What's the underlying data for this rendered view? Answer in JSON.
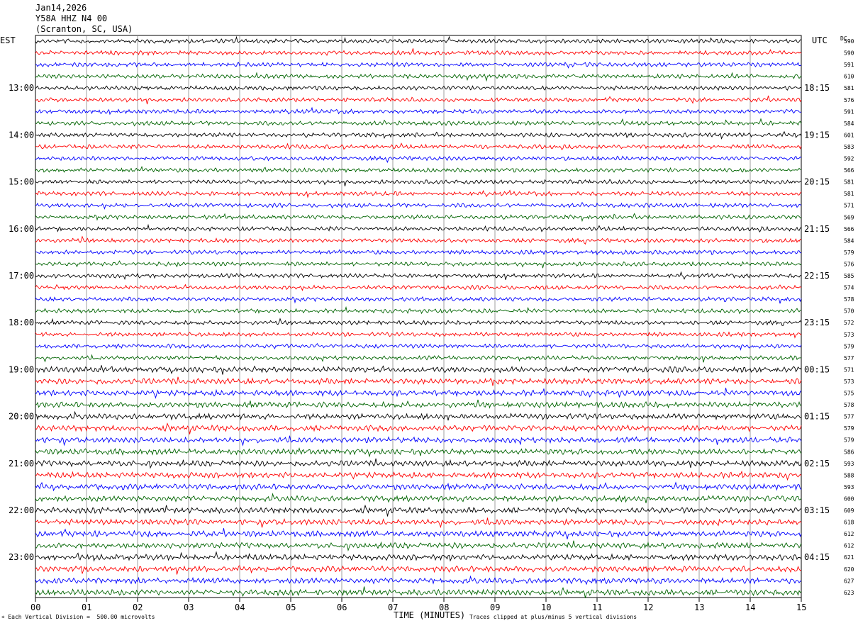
{
  "header": {
    "date": "Jan14,2026",
    "station": "Y58A HHZ N4 00",
    "location": "(Scranton, SC, USA)"
  },
  "axes": {
    "left_tz": "EST",
    "right_tz": "UTC",
    "dc_label": "DC",
    "xlabel": "TIME (MINUTES)"
  },
  "footer": {
    "scale_note": "Each Vertical Division =  500.00 microvolts",
    "clip_note": "Traces clipped at plus/minus 5 vertical divisions"
  },
  "colors": {
    "trace_cycle": [
      "#000000",
      "#ff0000",
      "#0000ff",
      "#006400"
    ],
    "grid": "#888888"
  },
  "chart_data": {
    "type": "line",
    "title": "Y58A HHZ N4 00",
    "xlabel": "TIME (MINUTES)",
    "x_ticks": [
      "00",
      "01",
      "02",
      "03",
      "04",
      "05",
      "06",
      "07",
      "08",
      "09",
      "10",
      "11",
      "12",
      "13",
      "14",
      "15"
    ],
    "xlim": [
      0,
      15
    ],
    "rows": 48,
    "left_hour_labels": [
      "13:00",
      "14:00",
      "15:00",
      "16:00",
      "17:00",
      "18:00",
      "19:00",
      "20:00",
      "21:00",
      "22:00",
      "23:00"
    ],
    "right_hour_labels": [
      "18:15",
      "19:15",
      "20:15",
      "21:15",
      "22:15",
      "23:15",
      "00:15",
      "01:15",
      "02:15",
      "03:15",
      "04:15"
    ],
    "label_every_rows": 4,
    "first_label_row": 4,
    "dc_offsets": [
      590,
      590,
      591,
      610,
      581,
      576,
      591,
      584,
      601,
      583,
      592,
      566,
      581,
      581,
      571,
      569,
      566,
      584,
      579,
      576,
      585,
      574,
      578,
      570,
      572,
      573,
      579,
      577,
      571,
      573,
      575,
      578,
      577,
      579,
      579,
      586,
      593,
      588,
      593,
      600,
      609,
      618,
      612,
      612,
      621,
      620,
      627,
      623
    ],
    "clip_divisions": 5,
    "microvolts_per_division": 500.0
  }
}
